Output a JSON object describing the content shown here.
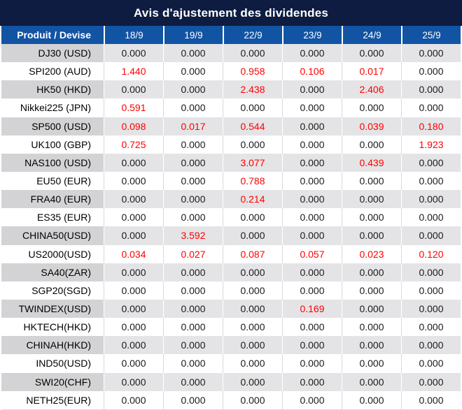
{
  "title": "Avis d'ajustement des dividendes",
  "colors": {
    "title_bg": "#0d1c40",
    "header_bg": "#1254a4",
    "shade_label_bg": "#d3d3d5",
    "shade_value_bg": "#e4e4e6",
    "negative_red": "#fe0000",
    "value_ink": "#1a1a1a"
  },
  "table": {
    "product_header": "Produit / Devise",
    "date_headers": [
      "18/9",
      "19/9",
      "22/9",
      "23/9",
      "24/9",
      "25/9"
    ],
    "rows": [
      {
        "label": "DJ30 (USD)",
        "values": [
          "0.000",
          "0.000",
          "0.000",
          "0.000",
          "0.000",
          "0.000"
        ],
        "red": [
          0,
          0,
          0,
          0,
          0,
          0
        ]
      },
      {
        "label": "SPI200 (AUD)",
        "values": [
          "1.440",
          "0.000",
          "0.958",
          "0.106",
          "0.017",
          "0.000"
        ],
        "red": [
          1,
          0,
          1,
          1,
          1,
          0
        ]
      },
      {
        "label": "HK50 (HKD)",
        "values": [
          "0.000",
          "0.000",
          "2.438",
          "0.000",
          "2.406",
          "0.000"
        ],
        "red": [
          0,
          0,
          1,
          0,
          1,
          0
        ]
      },
      {
        "label": "Nikkei225 (JPN)",
        "values": [
          "0.591",
          "0.000",
          "0.000",
          "0.000",
          "0.000",
          "0.000"
        ],
        "red": [
          1,
          0,
          0,
          0,
          0,
          0
        ]
      },
      {
        "label": "SP500 (USD)",
        "values": [
          "0.098",
          "0.017",
          "0.544",
          "0.000",
          "0.039",
          "0.180"
        ],
        "red": [
          1,
          1,
          1,
          0,
          1,
          1
        ]
      },
      {
        "label": "UK100 (GBP)",
        "values": [
          "0.725",
          "0.000",
          "0.000",
          "0.000",
          "0.000",
          "1.923"
        ],
        "red": [
          1,
          0,
          0,
          0,
          0,
          1
        ]
      },
      {
        "label": "NAS100 (USD)",
        "values": [
          "0.000",
          "0.000",
          "3.077",
          "0.000",
          "0.439",
          "0.000"
        ],
        "red": [
          0,
          0,
          1,
          0,
          1,
          0
        ]
      },
      {
        "label": "EU50 (EUR)",
        "values": [
          "0.000",
          "0.000",
          "0.788",
          "0.000",
          "0.000",
          "0.000"
        ],
        "red": [
          0,
          0,
          1,
          0,
          0,
          0
        ]
      },
      {
        "label": "FRA40 (EUR)",
        "values": [
          "0.000",
          "0.000",
          "0.214",
          "0.000",
          "0.000",
          "0.000"
        ],
        "red": [
          0,
          0,
          1,
          0,
          0,
          0
        ]
      },
      {
        "label": "ES35 (EUR)",
        "values": [
          "0.000",
          "0.000",
          "0.000",
          "0.000",
          "0.000",
          "0.000"
        ],
        "red": [
          0,
          0,
          0,
          0,
          0,
          0
        ]
      },
      {
        "label": "CHINA50(USD)",
        "values": [
          "0.000",
          "3.592",
          "0.000",
          "0.000",
          "0.000",
          "0.000"
        ],
        "red": [
          0,
          1,
          0,
          0,
          0,
          0
        ]
      },
      {
        "label": "US2000(USD)",
        "values": [
          "0.034",
          "0.027",
          "0.087",
          "0.057",
          "0.023",
          "0.120"
        ],
        "red": [
          1,
          1,
          1,
          1,
          1,
          1
        ]
      },
      {
        "label": "SA40(ZAR)",
        "values": [
          "0.000",
          "0.000",
          "0.000",
          "0.000",
          "0.000",
          "0.000"
        ],
        "red": [
          0,
          0,
          0,
          0,
          0,
          0
        ]
      },
      {
        "label": "SGP20(SGD)",
        "values": [
          "0.000",
          "0.000",
          "0.000",
          "0.000",
          "0.000",
          "0.000"
        ],
        "red": [
          0,
          0,
          0,
          0,
          0,
          0
        ]
      },
      {
        "label": "TWINDEX(USD)",
        "values": [
          "0.000",
          "0.000",
          "0.000",
          "0.169",
          "0.000",
          "0.000"
        ],
        "red": [
          0,
          0,
          0,
          1,
          0,
          0
        ]
      },
      {
        "label": "HKTECH(HKD)",
        "values": [
          "0.000",
          "0.000",
          "0.000",
          "0.000",
          "0.000",
          "0.000"
        ],
        "red": [
          0,
          0,
          0,
          0,
          0,
          0
        ]
      },
      {
        "label": "CHINAH(HKD)",
        "values": [
          "0.000",
          "0.000",
          "0.000",
          "0.000",
          "0.000",
          "0.000"
        ],
        "red": [
          0,
          0,
          0,
          0,
          0,
          0
        ]
      },
      {
        "label": "IND50(USD)",
        "values": [
          "0.000",
          "0.000",
          "0.000",
          "0.000",
          "0.000",
          "0.000"
        ],
        "red": [
          0,
          0,
          0,
          0,
          0,
          0
        ]
      },
      {
        "label": "SWI20(CHF)",
        "values": [
          "0.000",
          "0.000",
          "0.000",
          "0.000",
          "0.000",
          "0.000"
        ],
        "red": [
          0,
          0,
          0,
          0,
          0,
          0
        ]
      },
      {
        "label": "NETH25(EUR)",
        "values": [
          "0.000",
          "0.000",
          "0.000",
          "0.000",
          "0.000",
          "0.000"
        ],
        "red": [
          0,
          0,
          0,
          0,
          0,
          0
        ]
      }
    ]
  }
}
